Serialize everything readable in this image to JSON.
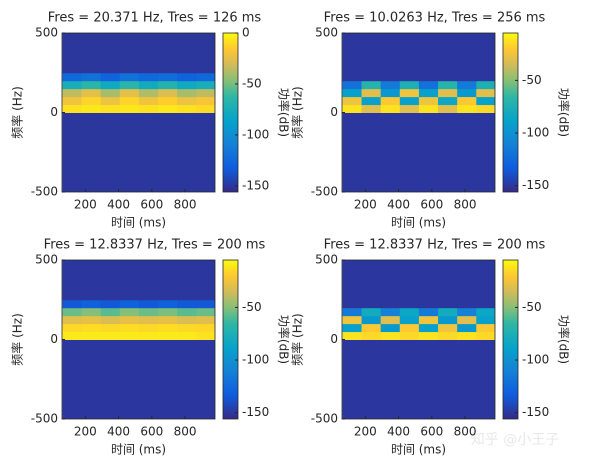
{
  "chart_data": [
    {
      "type": "heatmap",
      "title": "Fres = 20.371 Hz, Tres = 126 ms",
      "xlabel": "时间 (ms)",
      "ylabel": "频率 (Hz)",
      "clabel": "功率(dB)",
      "colormap": "parula",
      "x": [
        120,
        235,
        350,
        465,
        580,
        695,
        810,
        925
      ],
      "y": [
        -475,
        -425,
        -375,
        -325,
        -275,
        -225,
        -175,
        -125,
        -75,
        -25,
        25,
        75,
        125,
        175,
        225,
        275,
        325,
        375,
        425,
        475
      ],
      "xlim": [
        60,
        980
      ],
      "xticks": [
        200,
        400,
        600,
        800
      ],
      "ylim": [
        -500,
        500
      ],
      "yticks": [
        -500,
        0,
        500
      ],
      "clim": [
        -156,
        0
      ],
      "cticks": [
        -150,
        -100,
        -50,
        0
      ],
      "values": [
        [
          -150,
          -150,
          -150,
          -150,
          -150,
          -150,
          -150,
          -150
        ],
        [
          -150,
          -150,
          -150,
          -150,
          -150,
          -150,
          -150,
          -150
        ],
        [
          -150,
          -150,
          -150,
          -150,
          -150,
          -150,
          -150,
          -150
        ],
        [
          -150,
          -150,
          -150,
          -150,
          -150,
          -150,
          -150,
          -150
        ],
        [
          -150,
          -150,
          -150,
          -150,
          -150,
          -150,
          -150,
          -150
        ],
        [
          -150,
          -150,
          -150,
          -150,
          -150,
          -150,
          -150,
          -150
        ],
        [
          -150,
          -150,
          -150,
          -150,
          -150,
          -150,
          -150,
          -150
        ],
        [
          -150,
          -150,
          -150,
          -150,
          -150,
          -150,
          -150,
          -150
        ],
        [
          -150,
          -150,
          -150,
          -150,
          -150,
          -150,
          -150,
          -150
        ],
        [
          -150,
          -150,
          -150,
          -150,
          -150,
          -150,
          -150,
          -150
        ],
        [
          -8,
          -6,
          -8,
          -6,
          -8,
          -6,
          -8,
          -10
        ],
        [
          -20,
          -12,
          -22,
          -12,
          -20,
          -14,
          -22,
          -18
        ],
        [
          -35,
          -25,
          -40,
          -25,
          -38,
          -28,
          -40,
          -35
        ],
        [
          -75,
          -65,
          -80,
          -65,
          -78,
          -68,
          -80,
          -75
        ],
        [
          -125,
          -120,
          -128,
          -120,
          -125,
          -122,
          -128,
          -125
        ],
        [
          -150,
          -150,
          -150,
          -150,
          -150,
          -150,
          -150,
          -150
        ],
        [
          -150,
          -150,
          -150,
          -150,
          -150,
          -150,
          -150,
          -150
        ],
        [
          -150,
          -150,
          -150,
          -150,
          -150,
          -150,
          -150,
          -150
        ],
        [
          -150,
          -150,
          -150,
          -150,
          -150,
          -150,
          -150,
          -150
        ],
        [
          -150,
          -150,
          -150,
          -150,
          -150,
          -150,
          -150,
          -150
        ]
      ]
    },
    {
      "type": "heatmap",
      "title": "Fres = 10.0263 Hz, Tres = 256 ms",
      "xlabel": "时间 (ms)",
      "ylabel": "频率 (Hz)",
      "clabel": "功率(dB)",
      "colormap": "parula",
      "x": [
        120,
        235,
        350,
        465,
        580,
        695,
        810,
        925
      ],
      "y": [
        -475,
        -425,
        -375,
        -325,
        -275,
        -225,
        -175,
        -125,
        -75,
        -25,
        25,
        75,
        125,
        175,
        225,
        275,
        325,
        375,
        425,
        475
      ],
      "xlim": [
        60,
        980
      ],
      "xticks": [
        200,
        400,
        600,
        800
      ],
      "ylim": [
        -500,
        500
      ],
      "yticks": [
        -500,
        0,
        500
      ],
      "clim": [
        -156,
        -5
      ],
      "cticks": [
        -150,
        -100,
        -50
      ],
      "values": [
        [
          -150,
          -150,
          -150,
          -150,
          -150,
          -150,
          -150,
          -150
        ],
        [
          -150,
          -150,
          -150,
          -150,
          -150,
          -150,
          -150,
          -150
        ],
        [
          -150,
          -150,
          -150,
          -150,
          -150,
          -150,
          -150,
          -150
        ],
        [
          -150,
          -150,
          -150,
          -150,
          -150,
          -150,
          -150,
          -150
        ],
        [
          -150,
          -150,
          -150,
          -150,
          -150,
          -150,
          -150,
          -150
        ],
        [
          -150,
          -150,
          -150,
          -150,
          -150,
          -150,
          -150,
          -150
        ],
        [
          -150,
          -150,
          -150,
          -150,
          -150,
          -150,
          -150,
          -150
        ],
        [
          -150,
          -150,
          -150,
          -150,
          -150,
          -150,
          -150,
          -150
        ],
        [
          -150,
          -150,
          -150,
          -150,
          -150,
          -150,
          -150,
          -150
        ],
        [
          -150,
          -150,
          -150,
          -150,
          -150,
          -150,
          -150,
          -150
        ],
        [
          -12,
          -30,
          -12,
          -30,
          -12,
          -30,
          -12,
          -15
        ],
        [
          -25,
          -90,
          -20,
          -90,
          -25,
          -85,
          -20,
          -90
        ],
        [
          -90,
          -30,
          -95,
          -25,
          -90,
          -30,
          -95,
          -30
        ],
        [
          -120,
          -70,
          -115,
          -75,
          -120,
          -70,
          -115,
          -75
        ],
        [
          -150,
          -150,
          -150,
          -150,
          -150,
          -150,
          -150,
          -150
        ],
        [
          -150,
          -150,
          -150,
          -150,
          -150,
          -150,
          -150,
          -150
        ],
        [
          -150,
          -150,
          -150,
          -150,
          -150,
          -150,
          -150,
          -150
        ],
        [
          -150,
          -150,
          -150,
          -150,
          -150,
          -150,
          -150,
          -150
        ],
        [
          -150,
          -150,
          -150,
          -150,
          -150,
          -150,
          -150,
          -150
        ],
        [
          -150,
          -150,
          -150,
          -150,
          -150,
          -150,
          -150,
          -150
        ]
      ]
    },
    {
      "type": "heatmap",
      "title": "Fres = 12.8337 Hz, Tres = 200 ms",
      "xlabel": "时间 (ms)",
      "ylabel": "频率 (Hz)",
      "clabel": "功率(dB)",
      "colormap": "parula",
      "x": [
        120,
        235,
        350,
        465,
        580,
        695,
        810,
        925
      ],
      "y": [
        -475,
        -425,
        -375,
        -325,
        -275,
        -225,
        -175,
        -125,
        -75,
        -25,
        25,
        75,
        125,
        175,
        225,
        275,
        325,
        375,
        425,
        475
      ],
      "xlim": [
        60,
        980
      ],
      "xticks": [
        200,
        400,
        600,
        800
      ],
      "ylim": [
        -500,
        500
      ],
      "yticks": [
        -500,
        0,
        500
      ],
      "clim": [
        -156,
        -5
      ],
      "cticks": [
        -150,
        -100,
        -50
      ],
      "values": [
        [
          -150,
          -150,
          -150,
          -150,
          -150,
          -150,
          -150,
          -150
        ],
        [
          -150,
          -150,
          -150,
          -150,
          -150,
          -150,
          -150,
          -150
        ],
        [
          -150,
          -150,
          -150,
          -150,
          -150,
          -150,
          -150,
          -150
        ],
        [
          -150,
          -150,
          -150,
          -150,
          -150,
          -150,
          -150,
          -150
        ],
        [
          -150,
          -150,
          -150,
          -150,
          -150,
          -150,
          -150,
          -150
        ],
        [
          -150,
          -150,
          -150,
          -150,
          -150,
          -150,
          -150,
          -150
        ],
        [
          -150,
          -150,
          -150,
          -150,
          -150,
          -150,
          -150,
          -150
        ],
        [
          -150,
          -150,
          -150,
          -150,
          -150,
          -150,
          -150,
          -150
        ],
        [
          -150,
          -150,
          -150,
          -150,
          -150,
          -150,
          -150,
          -150
        ],
        [
          -150,
          -150,
          -150,
          -150,
          -150,
          -150,
          -150,
          -150
        ],
        [
          -10,
          -10,
          -10,
          -10,
          -10,
          -10,
          -10,
          -12
        ],
        [
          -15,
          -14,
          -15,
          -14,
          -15,
          -14,
          -15,
          -16
        ],
        [
          -30,
          -28,
          -32,
          -28,
          -30,
          -28,
          -32,
          -30
        ],
        [
          -55,
          -50,
          -58,
          -50,
          -55,
          -52,
          -58,
          -55
        ],
        [
          -135,
          -130,
          -135,
          -130,
          -135,
          -130,
          -135,
          -135
        ],
        [
          -150,
          -150,
          -150,
          -150,
          -150,
          -150,
          -150,
          -150
        ],
        [
          -150,
          -150,
          -150,
          -150,
          -150,
          -150,
          -150,
          -150
        ],
        [
          -150,
          -150,
          -150,
          -150,
          -150,
          -150,
          -150,
          -150
        ],
        [
          -150,
          -150,
          -150,
          -150,
          -150,
          -150,
          -150,
          -150
        ],
        [
          -150,
          -150,
          -150,
          -150,
          -150,
          -150,
          -150,
          -150
        ]
      ]
    },
    {
      "type": "heatmap",
      "title": "Fres = 12.8337 Hz, Tres = 200 ms",
      "xlabel": "时间 (ms)",
      "ylabel": "频率 (Hz)",
      "clabel": "功率(dB)",
      "colormap": "parula",
      "x": [
        120,
        235,
        350,
        465,
        580,
        695,
        810,
        925
      ],
      "y": [
        -475,
        -425,
        -375,
        -325,
        -275,
        -225,
        -175,
        -125,
        -75,
        -25,
        25,
        75,
        125,
        175,
        225,
        275,
        325,
        375,
        425,
        475
      ],
      "xlim": [
        60,
        980
      ],
      "xticks": [
        200,
        400,
        600,
        800
      ],
      "ylim": [
        -500,
        500
      ],
      "yticks": [
        -500,
        0,
        500
      ],
      "clim": [
        -156,
        -5
      ],
      "cticks": [
        -150,
        -100,
        -50
      ],
      "values": [
        [
          -150,
          -150,
          -150,
          -150,
          -150,
          -150,
          -150,
          -150
        ],
        [
          -150,
          -150,
          -150,
          -150,
          -150,
          -150,
          -150,
          -150
        ],
        [
          -150,
          -150,
          -150,
          -150,
          -150,
          -150,
          -150,
          -150
        ],
        [
          -150,
          -150,
          -150,
          -150,
          -150,
          -150,
          -150,
          -150
        ],
        [
          -150,
          -150,
          -150,
          -150,
          -150,
          -150,
          -150,
          -150
        ],
        [
          -150,
          -150,
          -150,
          -150,
          -150,
          -150,
          -150,
          -150
        ],
        [
          -150,
          -150,
          -150,
          -150,
          -150,
          -150,
          -150,
          -150
        ],
        [
          -150,
          -150,
          -150,
          -150,
          -150,
          -150,
          -150,
          -150
        ],
        [
          -150,
          -150,
          -150,
          -150,
          -150,
          -150,
          -150,
          -150
        ],
        [
          -150,
          -150,
          -150,
          -150,
          -150,
          -150,
          -150,
          -150
        ],
        [
          -12,
          -15,
          -12,
          -15,
          -12,
          -15,
          -12,
          -15
        ],
        [
          -90,
          -20,
          -95,
          -20,
          -90,
          -25,
          -95,
          -20
        ],
        [
          -25,
          -95,
          -30,
          -90,
          -25,
          -95,
          -30,
          -90
        ],
        [
          -115,
          -80,
          -110,
          -85,
          -115,
          -80,
          -110,
          -85
        ],
        [
          -150,
          -150,
          -150,
          -150,
          -150,
          -150,
          -150,
          -150
        ],
        [
          -150,
          -150,
          -150,
          -150,
          -150,
          -150,
          -150,
          -150
        ],
        [
          -150,
          -150,
          -150,
          -150,
          -150,
          -150,
          -150,
          -150
        ],
        [
          -150,
          -150,
          -150,
          -150,
          -150,
          -150,
          -150,
          -150
        ],
        [
          -150,
          -150,
          -150,
          -150,
          -150,
          -150,
          -150,
          -150
        ],
        [
          -150,
          -150,
          -150,
          -150,
          -150,
          -150,
          -150,
          -150
        ]
      ]
    }
  ],
  "watermark": "知乎 @小王子"
}
